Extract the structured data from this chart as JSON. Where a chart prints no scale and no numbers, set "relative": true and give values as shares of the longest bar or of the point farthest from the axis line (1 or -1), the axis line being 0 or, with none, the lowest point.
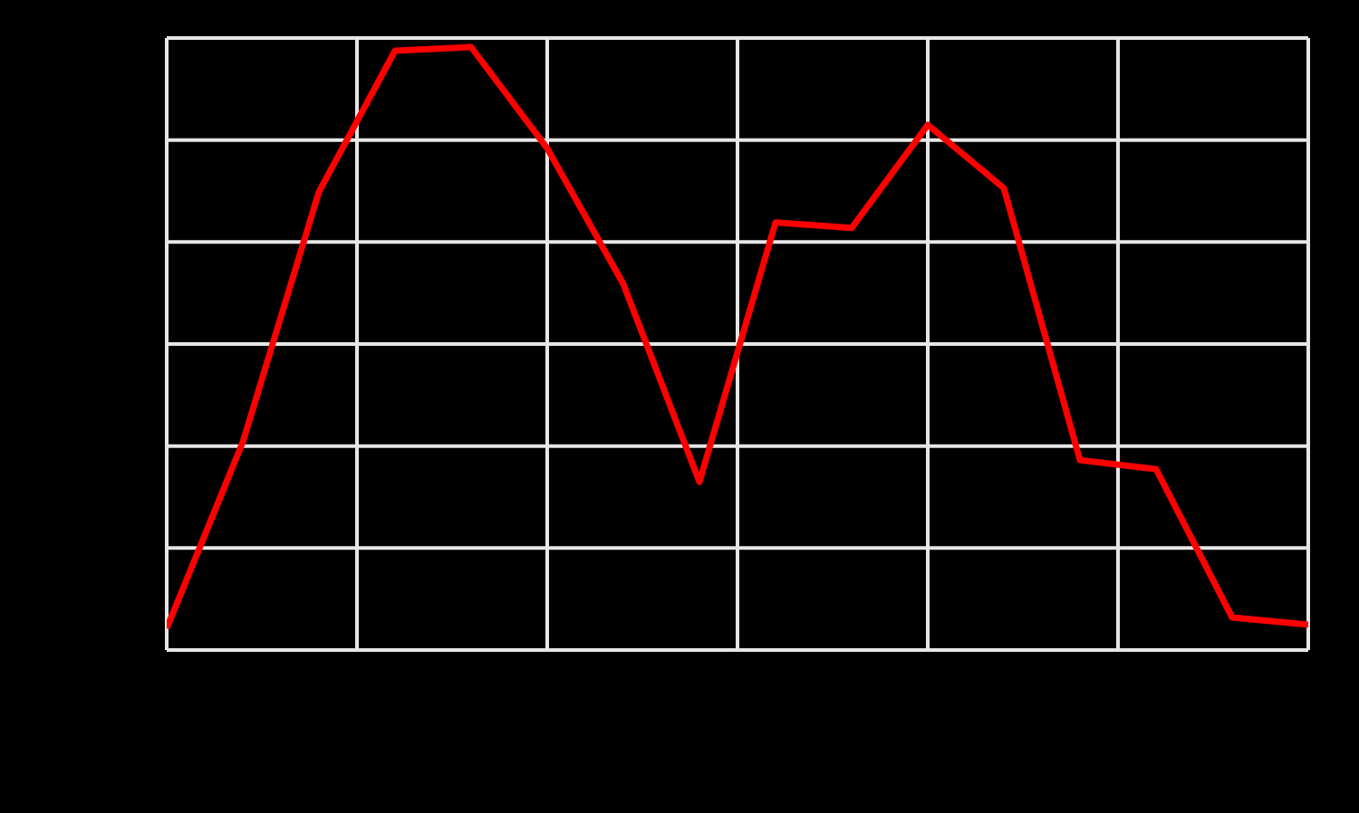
{
  "chart_data": {
    "type": "line",
    "relative": true,
    "categories": [
      null,
      null,
      null,
      null,
      null,
      null,
      null,
      null,
      null,
      null,
      null,
      null,
      null,
      null,
      null,
      null
    ],
    "series": [
      {
        "color": "#ff0000",
        "values": [
          0.036,
          0.345,
          0.76,
          0.994,
          1,
          0.832,
          0.607,
          0.279,
          0.709,
          0.7,
          0.871,
          0.766,
          0.315,
          0.3,
          0.054,
          0.042
        ]
      }
    ],
    "grid": true,
    "legend": false,
    "marker": "none",
    "line_style": "solid"
  }
}
